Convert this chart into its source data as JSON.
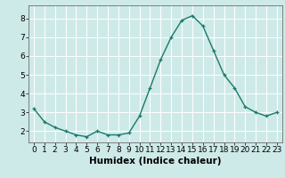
{
  "x": [
    0,
    1,
    2,
    3,
    4,
    5,
    6,
    7,
    8,
    9,
    10,
    11,
    12,
    13,
    14,
    15,
    16,
    17,
    18,
    19,
    20,
    21,
    22,
    23
  ],
  "y": [
    3.2,
    2.5,
    2.2,
    2.0,
    1.8,
    1.7,
    2.0,
    1.8,
    1.8,
    1.9,
    2.8,
    4.3,
    5.8,
    7.0,
    7.9,
    8.15,
    7.6,
    6.3,
    5.0,
    4.3,
    3.3,
    3.0,
    2.8,
    3.0
  ],
  "line_color": "#1a7a6a",
  "marker_color": "#1a7a6a",
  "bg_color": "#ceeae8",
  "grid_color": "#ffffff",
  "xlabel": "Humidex (Indice chaleur)",
  "xlabel_fontsize": 7.5,
  "tick_fontsize": 6.5,
  "ylim": [
    1.4,
    8.7
  ],
  "xlim": [
    -0.5,
    23.5
  ],
  "yticks": [
    2,
    3,
    4,
    5,
    6,
    7,
    8
  ],
  "xticks": [
    0,
    1,
    2,
    3,
    4,
    5,
    6,
    7,
    8,
    9,
    10,
    11,
    12,
    13,
    14,
    15,
    16,
    17,
    18,
    19,
    20,
    21,
    22,
    23
  ]
}
